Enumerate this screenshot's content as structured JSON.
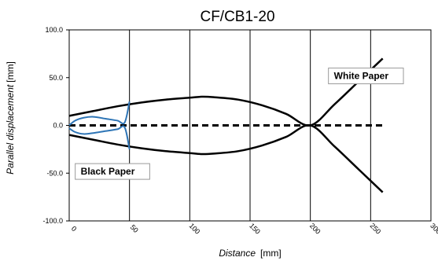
{
  "chart_data": {
    "type": "line",
    "title": "CF/CB1-20",
    "xlabel": {
      "main": "Distance",
      "unit": "[mm]"
    },
    "ylabel": {
      "main": "Parallel displacement",
      "unit": "[mm]"
    },
    "xlim": [
      0,
      300
    ],
    "ylim": [
      -100,
      100
    ],
    "x_ticks": [
      "0",
      "50",
      "100",
      "150",
      "200",
      "250",
      "300"
    ],
    "y_ticks": [
      "100.0",
      "50.0",
      "0.0",
      "-50.0",
      "-100.0"
    ],
    "grid": "vertical",
    "annotations": [
      {
        "text": "White Paper",
        "x": 215,
        "y": 60
      },
      {
        "text": "Black Paper",
        "x": 5,
        "y": -40
      }
    ],
    "colors": {
      "black_series": "#000000",
      "blue_series": "#2e75b6"
    },
    "series": [
      {
        "style": "solid-black",
        "x": [
          0,
          20,
          40,
          60,
          80,
          100,
          110,
          120,
          140,
          160,
          180,
          200,
          220,
          240,
          260
        ],
        "y": [
          10,
          15,
          20,
          24,
          27,
          29,
          30,
          29.5,
          27,
          21,
          12,
          0,
          22,
          46,
          70
        ]
      },
      {
        "style": "solid-black",
        "x": [
          0,
          20,
          40,
          60,
          80,
          100,
          110,
          120,
          140,
          160,
          180,
          200,
          220,
          240,
          260
        ],
        "y": [
          -10,
          -15,
          -20,
          -24,
          -27,
          -29,
          -30,
          -29.5,
          -27,
          -21,
          -12,
          0,
          -22,
          -46,
          -70
        ]
      },
      {
        "style": "dashed-black",
        "x": [
          0,
          260
        ],
        "y": [
          0,
          0
        ]
      },
      {
        "style": "solid-blue",
        "x": [
          0,
          5,
          12,
          20,
          30,
          40,
          46,
          50
        ],
        "y": [
          0,
          5,
          8,
          9,
          7,
          5,
          3,
          25
        ]
      },
      {
        "style": "solid-blue",
        "x": [
          0,
          5,
          12,
          20,
          30,
          40,
          46,
          50
        ],
        "y": [
          -3,
          -7,
          -9,
          -8,
          -6,
          -4,
          -2,
          -25
        ]
      }
    ]
  }
}
